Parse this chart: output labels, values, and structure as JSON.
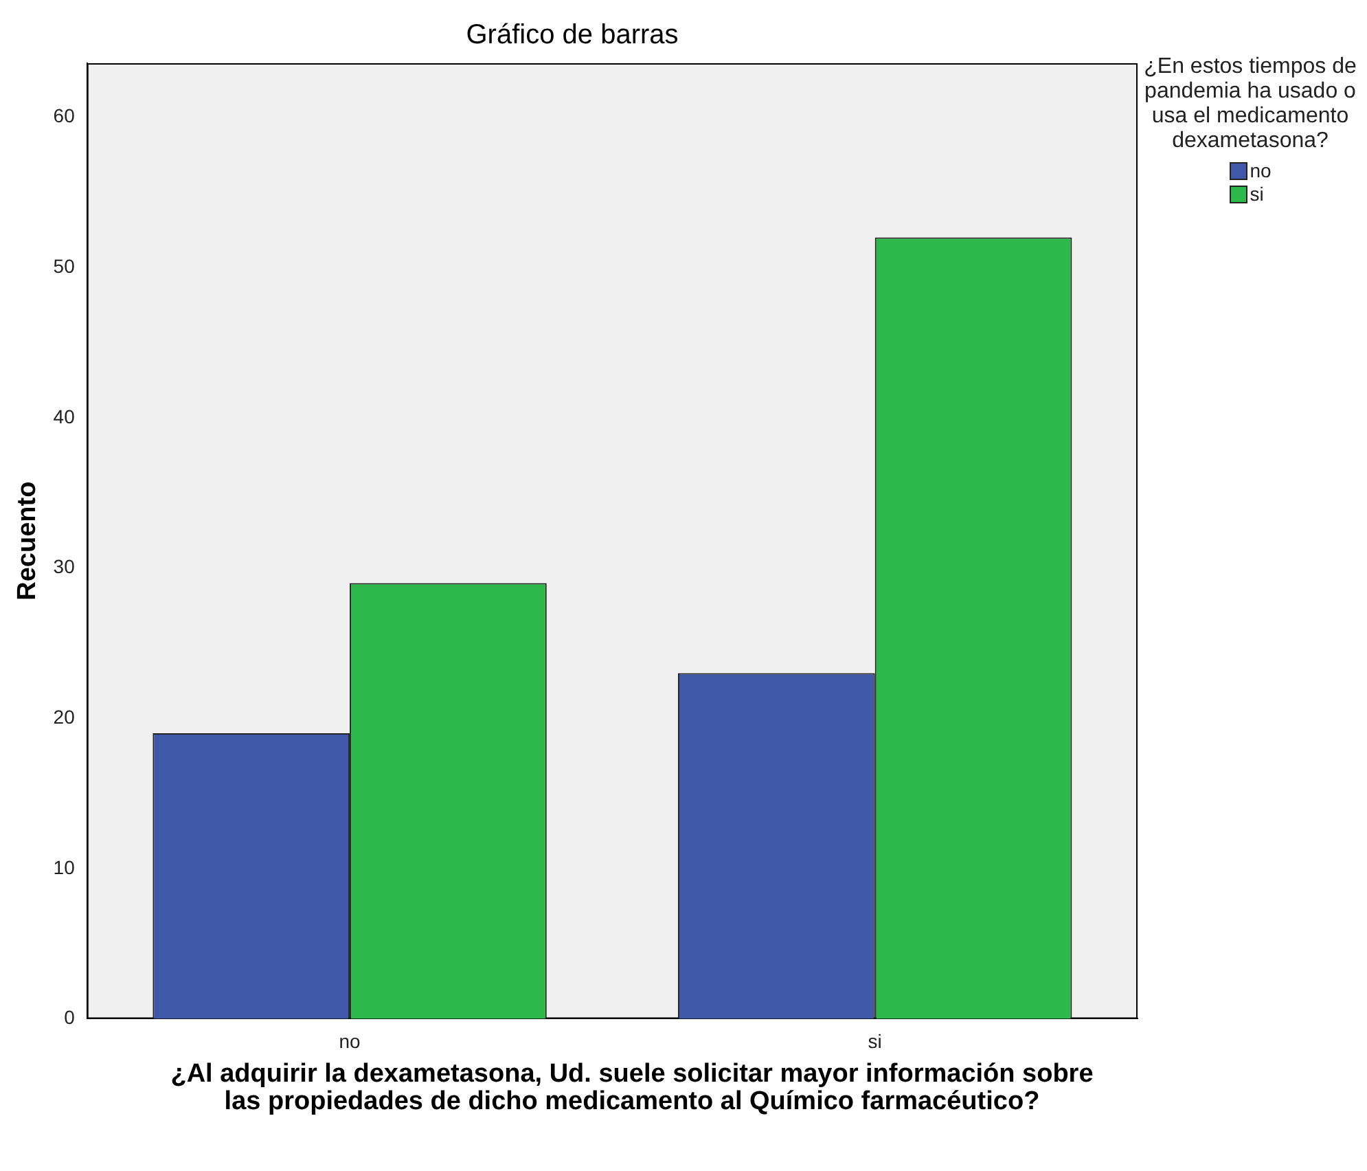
{
  "chart_data": {
    "type": "bar",
    "title": "Gráfico de barras",
    "xlabel": "¿Al adquirir la dexametasona, Ud. suele solicitar mayor información sobre las propiedades de dicho medicamento al Químico farmacéutico?",
    "ylabel": "Recuento",
    "legend_title": "¿En estos tiempos de pandemia ha usado o usa el medicamento dexametasona?",
    "categories": [
      "no",
      "si"
    ],
    "series": [
      {
        "name": "no",
        "color": "#3f58a8",
        "values": [
          19,
          23
        ]
      },
      {
        "name": "si",
        "color": "#2db84b",
        "values": [
          29,
          52
        ]
      }
    ],
    "ylim": [
      0,
      63.6
    ],
    "yticks": [
      0,
      10,
      20,
      30,
      40,
      50,
      60
    ],
    "grid": false,
    "legend": "right"
  }
}
